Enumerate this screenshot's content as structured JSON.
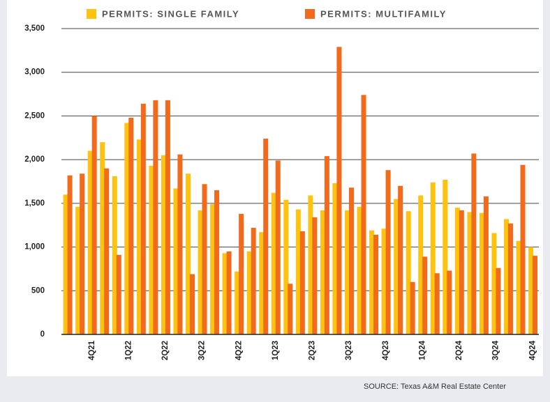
{
  "chart_data": {
    "type": "bar",
    "categories": [
      null,
      null,
      "4Q21",
      null,
      null,
      "1Q22",
      null,
      null,
      "2Q22",
      null,
      null,
      "3Q22",
      null,
      null,
      "4Q22",
      null,
      null,
      "1Q23",
      null,
      null,
      "2Q23",
      null,
      null,
      "3Q23",
      null,
      null,
      "4Q23",
      null,
      null,
      "1Q24",
      null,
      null,
      "2Q24",
      null,
      null,
      "3Q24",
      null,
      null,
      "4Q24"
    ],
    "series": [
      {
        "name": "PERMITS: SINGLE FAMILY",
        "color": "#ffc20e",
        "values": [
          1600,
          1460,
          2100,
          2200,
          1810,
          2420,
          2230,
          1930,
          2050,
          1670,
          1840,
          1420,
          1490,
          930,
          720,
          950,
          1170,
          1620,
          1540,
          1430,
          1590,
          1420,
          1730,
          1420,
          1460,
          1190,
          1210,
          1550,
          1410,
          1590,
          1740,
          1770,
          1450,
          1400,
          1390,
          1160,
          1320,
          1070,
          1000
        ]
      },
      {
        "name": "PERMITS: MULTIFAMILY",
        "color": "#f26b1d",
        "values": [
          1820,
          1840,
          2500,
          1900,
          910,
          2480,
          2640,
          2680,
          2680,
          2060,
          690,
          1720,
          1650,
          950,
          1380,
          1220,
          2240,
          1990,
          580,
          1180,
          1340,
          2040,
          3290,
          1680,
          2740,
          1140,
          1880,
          1700,
          600,
          890,
          700,
          730,
          1420,
          2070,
          1580,
          760,
          1270,
          1940,
          900
        ]
      }
    ],
    "ylim": [
      0,
      3500
    ],
    "yticks": [
      0,
      500,
      {
        "value": 1000,
        "label": "1,000"
      },
      {
        "value": 1500,
        "label": "1,500"
      },
      {
        "value": 2000,
        "label": "2,000"
      },
      {
        "value": 2500,
        "label": "2,500"
      },
      {
        "value": 3000,
        "label": "3,000"
      },
      {
        "value": 3500,
        "label": "3,500"
      }
    ],
    "grid": true,
    "source": "SOURCE: Texas A&M Real Estate Center"
  }
}
